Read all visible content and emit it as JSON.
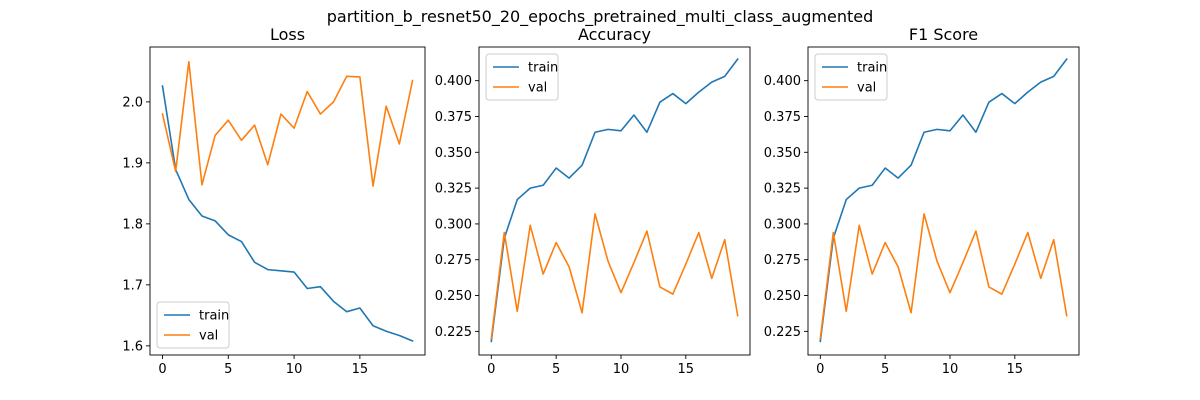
{
  "figure": {
    "suptitle": "partition_b_resnet50_20_epochs_pretrained_multi_class_augmented"
  },
  "chart_data": [
    {
      "type": "line",
      "title": "Loss",
      "xlabel": "",
      "ylabel": "",
      "x": [
        0,
        1,
        2,
        3,
        4,
        5,
        6,
        7,
        8,
        9,
        10,
        11,
        12,
        13,
        14,
        15,
        16,
        17,
        18,
        19
      ],
      "xlim": [
        -0.95,
        19.95
      ],
      "ylim": [
        1.585,
        2.09
      ],
      "xticks": [
        0,
        5,
        10,
        15
      ],
      "yticks": [
        1.6,
        1.7,
        1.8,
        1.9,
        2.0
      ],
      "ytick_labels": [
        "1.6",
        "1.7",
        "1.8",
        "1.9",
        "2.0"
      ],
      "legend_position": "lower-left",
      "grid": false,
      "series": [
        {
          "name": "train",
          "color": "#1f77b4",
          "values": [
            2.026,
            1.889,
            1.84,
            1.813,
            1.805,
            1.782,
            1.771,
            1.737,
            1.725,
            1.723,
            1.721,
            1.694,
            1.697,
            1.673,
            1.656,
            1.662,
            1.633,
            1.624,
            1.617,
            1.608
          ]
        },
        {
          "name": "val",
          "color": "#ff7f0e",
          "values": [
            1.98,
            1.886,
            2.066,
            1.864,
            1.945,
            1.97,
            1.937,
            1.962,
            1.897,
            1.98,
            1.957,
            2.017,
            1.98,
            2.0,
            2.042,
            2.041,
            1.862,
            1.993,
            1.931,
            2.035
          ]
        }
      ]
    },
    {
      "type": "line",
      "title": "Accuracy",
      "xlabel": "",
      "ylabel": "",
      "x": [
        0,
        1,
        2,
        3,
        4,
        5,
        6,
        7,
        8,
        9,
        10,
        11,
        12,
        13,
        14,
        15,
        16,
        17,
        18,
        19
      ],
      "xlim": [
        -0.95,
        19.95
      ],
      "ylim": [
        0.2085,
        0.4235
      ],
      "xticks": [
        0,
        5,
        10,
        15
      ],
      "yticks": [
        0.225,
        0.25,
        0.275,
        0.3,
        0.325,
        0.35,
        0.375,
        0.4
      ],
      "ytick_labels": [
        "0.225",
        "0.250",
        "0.275",
        "0.300",
        "0.325",
        "0.350",
        "0.375",
        "0.400"
      ],
      "legend_position": "upper-left",
      "grid": false,
      "series": [
        {
          "name": "train",
          "color": "#1f77b4",
          "values": [
            0.218,
            0.29,
            0.317,
            0.325,
            0.327,
            0.339,
            0.332,
            0.341,
            0.364,
            0.366,
            0.365,
            0.376,
            0.364,
            0.385,
            0.391,
            0.384,
            0.392,
            0.399,
            0.403,
            0.415
          ]
        },
        {
          "name": "val",
          "color": "#ff7f0e",
          "values": [
            0.22,
            0.294,
            0.239,
            0.299,
            0.265,
            0.287,
            0.27,
            0.238,
            0.307,
            0.274,
            0.252,
            0.273,
            0.295,
            0.256,
            0.251,
            0.272,
            0.294,
            0.262,
            0.289,
            0.236
          ]
        }
      ]
    },
    {
      "type": "line",
      "title": "F1 Score",
      "xlabel": "",
      "ylabel": "",
      "x": [
        0,
        1,
        2,
        3,
        4,
        5,
        6,
        7,
        8,
        9,
        10,
        11,
        12,
        13,
        14,
        15,
        16,
        17,
        18,
        19
      ],
      "xlim": [
        -0.95,
        19.95
      ],
      "ylim": [
        0.2085,
        0.4235
      ],
      "xticks": [
        0,
        5,
        10,
        15
      ],
      "yticks": [
        0.225,
        0.25,
        0.275,
        0.3,
        0.325,
        0.35,
        0.375,
        0.4
      ],
      "ytick_labels": [
        "0.225",
        "0.250",
        "0.275",
        "0.300",
        "0.325",
        "0.350",
        "0.375",
        "0.400"
      ],
      "legend_position": "upper-left",
      "grid": false,
      "series": [
        {
          "name": "train",
          "color": "#1f77b4",
          "values": [
            0.218,
            0.29,
            0.317,
            0.325,
            0.327,
            0.339,
            0.332,
            0.341,
            0.364,
            0.366,
            0.365,
            0.376,
            0.364,
            0.385,
            0.391,
            0.384,
            0.392,
            0.399,
            0.403,
            0.415
          ]
        },
        {
          "name": "val",
          "color": "#ff7f0e",
          "values": [
            0.22,
            0.294,
            0.239,
            0.299,
            0.265,
            0.287,
            0.27,
            0.238,
            0.307,
            0.274,
            0.252,
            0.273,
            0.295,
            0.256,
            0.251,
            0.272,
            0.294,
            0.262,
            0.289,
            0.236
          ]
        }
      ]
    }
  ]
}
